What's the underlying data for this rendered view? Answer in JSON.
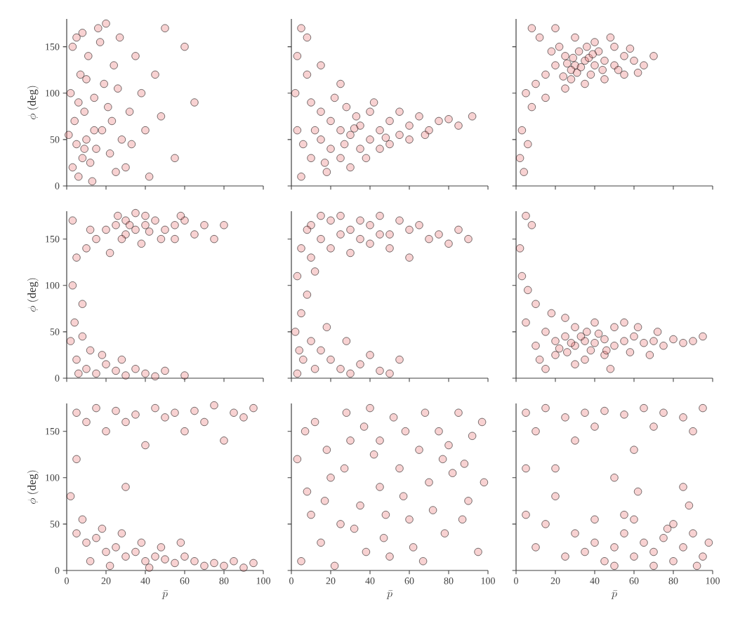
{
  "chart_data": [
    {
      "type": "scatter",
      "ylabel": "\\phi\\ \\mathrm{(deg)}",
      "color": "#e8696b",
      "marker": "circle",
      "xlim": [
        0,
        100
      ],
      "ylim": [
        0,
        180
      ],
      "xticks": [
        0,
        20,
        40,
        60,
        80,
        100
      ],
      "yticks": [
        0,
        50,
        100,
        150
      ],
      "tick_labels": "y",
      "x": [
        3,
        5,
        8,
        10,
        6,
        12,
        15,
        4,
        9,
        14,
        7,
        11,
        5,
        16,
        20,
        3,
        18,
        22,
        25,
        13,
        2,
        19,
        24,
        8,
        28,
        32,
        35,
        30,
        40,
        45,
        50,
        38,
        55,
        42,
        60,
        27,
        17,
        1,
        10,
        21,
        6,
        14,
        9,
        23,
        33,
        26,
        48,
        65
      ],
      "values": [
        20,
        45,
        30,
        50,
        10,
        25,
        40,
        70,
        80,
        95,
        120,
        140,
        160,
        170,
        175,
        150,
        60,
        35,
        15,
        5,
        100,
        110,
        130,
        165,
        50,
        80,
        140,
        20,
        60,
        120,
        170,
        100,
        30,
        10,
        150,
        160,
        155,
        55,
        115,
        85,
        90,
        60,
        40,
        70,
        45,
        105,
        75,
        90
      ]
    },
    {
      "type": "scatter",
      "color": "#e8696b",
      "marker": "circle",
      "xlim": [
        0,
        100
      ],
      "ylim": [
        0,
        180
      ],
      "xticks": [
        0,
        20,
        40,
        60,
        80,
        100
      ],
      "yticks": [
        0,
        50,
        100,
        150
      ],
      "tick_labels": false,
      "x": [
        5,
        3,
        8,
        2,
        10,
        15,
        20,
        25,
        30,
        35,
        40,
        45,
        50,
        55,
        60,
        65,
        70,
        75,
        80,
        20,
        25,
        30,
        15,
        10,
        5,
        18,
        35,
        40,
        28,
        22,
        12,
        6,
        45,
        50,
        55,
        33,
        38,
        25,
        15,
        8,
        3,
        60,
        42,
        68,
        85,
        92,
        27,
        32,
        17,
        48
      ],
      "values": [
        170,
        140,
        120,
        100,
        90,
        80,
        70,
        60,
        55,
        65,
        50,
        60,
        70,
        55,
        65,
        75,
        60,
        70,
        72,
        40,
        30,
        20,
        50,
        30,
        10,
        15,
        40,
        80,
        85,
        95,
        60,
        45,
        40,
        45,
        80,
        75,
        30,
        110,
        130,
        160,
        60,
        50,
        90,
        55,
        65,
        75,
        45,
        62,
        25,
        52
      ]
    },
    {
      "type": "scatter",
      "color": "#e8696b",
      "marker": "circle",
      "xlim": [
        0,
        100
      ],
      "ylim": [
        0,
        180
      ],
      "xticks": [
        0,
        20,
        40,
        60,
        80,
        100
      ],
      "yticks": [
        0,
        50,
        100,
        150
      ],
      "tick_labels": false,
      "x": [
        30,
        35,
        28,
        40,
        25,
        32,
        38,
        45,
        50,
        55,
        60,
        20,
        15,
        10,
        5,
        22,
        30,
        40,
        35,
        45,
        25,
        18,
        12,
        8,
        20,
        50,
        65,
        70,
        42,
        28,
        33,
        37,
        26,
        31,
        15,
        8,
        3,
        2,
        4,
        6,
        55,
        48,
        24,
        36,
        52,
        58,
        44,
        29,
        39,
        62
      ],
      "values": [
        130,
        135,
        125,
        130,
        140,
        145,
        120,
        135,
        130,
        140,
        135,
        130,
        120,
        110,
        100,
        150,
        160,
        155,
        110,
        115,
        105,
        145,
        160,
        170,
        170,
        150,
        130,
        140,
        145,
        115,
        128,
        138,
        132,
        122,
        95,
        85,
        60,
        30,
        15,
        45,
        120,
        160,
        118,
        150,
        125,
        148,
        125,
        138,
        142,
        122
      ]
    },
    {
      "type": "scatter",
      "ylabel": "\\phi\\ \\mathrm{(deg)}",
      "color": "#e8696b",
      "marker": "circle",
      "xlim": [
        0,
        100
      ],
      "ylim": [
        0,
        180
      ],
      "xticks": [
        0,
        20,
        40,
        60,
        80,
        100
      ],
      "yticks": [
        0,
        50,
        100,
        150
      ],
      "tick_labels": "y",
      "x": [
        25,
        30,
        35,
        40,
        45,
        50,
        55,
        60,
        20,
        15,
        10,
        30,
        40,
        35,
        28,
        48,
        65,
        70,
        80,
        5,
        3,
        8,
        4,
        2,
        5,
        10,
        15,
        20,
        25,
        30,
        35,
        40,
        45,
        50,
        12,
        8,
        18,
        6,
        22,
        38,
        42,
        32,
        26,
        55,
        58,
        12,
        3,
        75,
        28,
        60
      ],
      "values": [
        165,
        170,
        160,
        165,
        170,
        160,
        165,
        170,
        160,
        150,
        140,
        155,
        175,
        178,
        150,
        150,
        155,
        165,
        165,
        130,
        100,
        80,
        60,
        40,
        20,
        10,
        5,
        15,
        8,
        3,
        10,
        5,
        2,
        8,
        30,
        45,
        25,
        5,
        135,
        145,
        158,
        165,
        175,
        150,
        175,
        160,
        170,
        150,
        20,
        3
      ]
    },
    {
      "type": "scatter",
      "color": "#e8696b",
      "marker": "circle",
      "xlim": [
        0,
        100
      ],
      "ylim": [
        0,
        180
      ],
      "xticks": [
        0,
        20,
        40,
        60,
        80,
        100
      ],
      "yticks": [
        0,
        50,
        100,
        150
      ],
      "tick_labels": false,
      "x": [
        10,
        20,
        30,
        40,
        50,
        60,
        70,
        15,
        25,
        35,
        45,
        55,
        65,
        75,
        80,
        5,
        10,
        20,
        30,
        40,
        50,
        60,
        3,
        8,
        5,
        2,
        10,
        15,
        20,
        25,
        30,
        35,
        40,
        45,
        6,
        12,
        18,
        28,
        50,
        3,
        85,
        90,
        25,
        15,
        45,
        35,
        8,
        12,
        4,
        55
      ],
      "values": [
        165,
        170,
        160,
        165,
        155,
        160,
        150,
        150,
        155,
        170,
        175,
        170,
        165,
        155,
        145,
        140,
        130,
        140,
        135,
        145,
        140,
        130,
        110,
        90,
        70,
        50,
        40,
        30,
        20,
        10,
        5,
        15,
        25,
        8,
        20,
        10,
        55,
        40,
        5,
        5,
        160,
        150,
        175,
        175,
        155,
        150,
        160,
        115,
        30,
        20
      ]
    },
    {
      "type": "scatter",
      "color": "#e8696b",
      "marker": "circle",
      "xlim": [
        0,
        100
      ],
      "ylim": [
        0,
        180
      ],
      "xticks": [
        0,
        20,
        40,
        60,
        80,
        100
      ],
      "yticks": [
        0,
        50,
        100,
        150
      ],
      "tick_labels": false,
      "x": [
        20,
        25,
        30,
        35,
        40,
        45,
        50,
        55,
        60,
        65,
        70,
        75,
        80,
        85,
        90,
        15,
        20,
        30,
        35,
        40,
        45,
        50,
        10,
        5,
        25,
        30,
        38,
        42,
        28,
        33,
        22,
        18,
        12,
        58,
        62,
        68,
        3,
        2,
        8,
        5,
        10,
        6,
        48,
        55,
        36,
        46,
        26,
        72,
        95,
        15
      ],
      "values": [
        40,
        45,
        35,
        40,
        38,
        42,
        35,
        40,
        45,
        38,
        40,
        35,
        42,
        38,
        40,
        50,
        25,
        55,
        20,
        60,
        25,
        55,
        35,
        60,
        65,
        15,
        30,
        48,
        38,
        45,
        32,
        70,
        20,
        28,
        55,
        25,
        110,
        140,
        165,
        175,
        80,
        95,
        10,
        60,
        50,
        30,
        28,
        50,
        45,
        10
      ]
    },
    {
      "type": "scatter",
      "xlabel": "\\bar{p}",
      "ylabel": "\\phi\\ \\mathrm{(deg)}",
      "color": "#e8696b",
      "marker": "circle",
      "xlim": [
        0,
        100
      ],
      "ylim": [
        0,
        180
      ],
      "xticks": [
        0,
        20,
        40,
        60,
        80,
        100
      ],
      "yticks": [
        0,
        50,
        100,
        150
      ],
      "x": [
        5,
        15,
        25,
        35,
        45,
        55,
        65,
        75,
        85,
        95,
        10,
        30,
        50,
        70,
        90,
        20,
        60,
        5,
        40,
        80,
        5,
        10,
        15,
        20,
        25,
        30,
        35,
        40,
        45,
        50,
        55,
        60,
        65,
        70,
        75,
        80,
        85,
        90,
        95,
        8,
        12,
        18,
        28,
        38,
        48,
        22,
        42,
        58,
        2,
        30
      ],
      "values": [
        170,
        175,
        172,
        168,
        175,
        170,
        172,
        178,
        170,
        175,
        160,
        160,
        165,
        160,
        165,
        150,
        150,
        120,
        135,
        140,
        40,
        30,
        35,
        20,
        25,
        15,
        20,
        10,
        15,
        12,
        8,
        15,
        10,
        5,
        8,
        5,
        10,
        3,
        8,
        55,
        10,
        45,
        40,
        30,
        25,
        5,
        3,
        30,
        80,
        90
      ]
    },
    {
      "type": "scatter",
      "xlabel": "\\bar{p}",
      "color": "#e8696b",
      "marker": "circle",
      "xlim": [
        0,
        100
      ],
      "ylim": [
        0,
        180
      ],
      "xticks": [
        0,
        20,
        40,
        60,
        80,
        100
      ],
      "yticks": [
        0,
        50,
        100,
        150
      ],
      "tick_labels": "x",
      "x": [
        5,
        15,
        25,
        35,
        45,
        55,
        65,
        75,
        85,
        95,
        10,
        20,
        30,
        40,
        50,
        60,
        70,
        80,
        90,
        3,
        12,
        22,
        32,
        42,
        52,
        62,
        72,
        82,
        92,
        8,
        18,
        28,
        38,
        48,
        58,
        68,
        78,
        88,
        98,
        7,
        17,
        27,
        37,
        47,
        57,
        67,
        77,
        87,
        97,
        45
      ],
      "values": [
        10,
        30,
        50,
        70,
        90,
        110,
        130,
        150,
        170,
        20,
        60,
        100,
        140,
        175,
        15,
        55,
        95,
        135,
        75,
        120,
        160,
        5,
        45,
        125,
        165,
        25,
        65,
        105,
        145,
        85,
        130,
        170,
        20,
        60,
        150,
        170,
        40,
        115,
        95,
        150,
        75,
        110,
        155,
        35,
        80,
        10,
        120,
        55,
        160,
        140
      ]
    },
    {
      "type": "scatter",
      "xlabel": "\\bar{p}",
      "color": "#e8696b",
      "marker": "circle",
      "xlim": [
        0,
        100
      ],
      "ylim": [
        0,
        180
      ],
      "xticks": [
        0,
        20,
        40,
        60,
        80,
        100
      ],
      "yticks": [
        0,
        50,
        100,
        150
      ],
      "tick_labels": "x",
      "x": [
        5,
        15,
        25,
        35,
        45,
        55,
        65,
        75,
        85,
        95,
        10,
        40,
        70,
        90,
        30,
        60,
        5,
        50,
        85,
        20,
        30,
        35,
        40,
        45,
        50,
        55,
        60,
        65,
        70,
        75,
        80,
        85,
        90,
        95,
        98,
        40,
        60,
        80,
        92,
        70,
        50,
        25,
        15,
        10,
        5,
        20,
        62,
        88,
        77,
        55
      ],
      "values": [
        170,
        175,
        165,
        170,
        172,
        168,
        175,
        170,
        165,
        175,
        150,
        155,
        155,
        150,
        140,
        130,
        110,
        100,
        90,
        80,
        40,
        20,
        30,
        10,
        25,
        40,
        15,
        30,
        20,
        35,
        10,
        25,
        40,
        15,
        30,
        55,
        55,
        50,
        5,
        5,
        5,
        15,
        50,
        25,
        60,
        110,
        85,
        70,
        45,
        60
      ]
    }
  ]
}
